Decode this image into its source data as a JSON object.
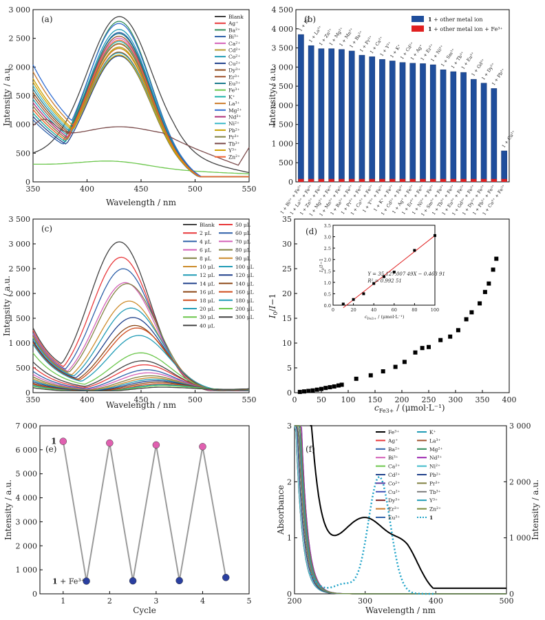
{
  "chart_data": [
    {
      "panel": "(a)",
      "type": "line",
      "xlabel": "Wavelength / nm",
      "ylabel": "Intensity / a.u.",
      "xlim": [
        350,
        550
      ],
      "ylim": [
        0,
        3000
      ],
      "xticks": [
        350,
        400,
        450,
        500,
        550
      ],
      "yticks": [
        0,
        500,
        1000,
        1500,
        2000,
        2500,
        3000
      ],
      "legend": [
        "Blank",
        "Ag⁺",
        "Ba²⁺",
        "Bi³⁺",
        "Ca²⁺",
        "Cd²⁺",
        "Co²⁺",
        "Cu²⁺",
        "Dy³⁺",
        "Er³⁺",
        "Eu³⁺",
        "Fe³⁺",
        "K⁺",
        "La³⁺",
        "Mg²⁺",
        "Nd³⁺",
        "Ni²⁺",
        "Pb²⁺",
        "Pr³⁺",
        "Tb³⁺",
        "Y³⁺",
        "Zn²⁺"
      ],
      "series": [
        {
          "name": "Blank",
          "color": "#404040",
          "peak": 2880,
          "start": 440,
          "shape": "blank"
        },
        {
          "name": "Ag⁺",
          "color": "#e8373a",
          "peak": 2350,
          "start": 1100,
          "shape": "ion"
        },
        {
          "name": "Ba²⁺",
          "color": "#2e8b57",
          "peak": 2750,
          "start": 1000,
          "shape": "ion"
        },
        {
          "name": "Bi³⁺",
          "color": "#2c5fa8",
          "peak": 2560,
          "start": 900,
          "shape": "ion"
        },
        {
          "name": "Ca²⁺",
          "color": "#d35fb7",
          "peak": 2450,
          "start": 1150,
          "shape": "ion"
        },
        {
          "name": "Cd²⁺",
          "color": "#b59a2b",
          "peak": 2300,
          "start": 1050,
          "shape": "ion"
        },
        {
          "name": "Co²⁺",
          "color": "#1f9bb5",
          "peak": 2600,
          "start": 1200,
          "shape": "ion"
        },
        {
          "name": "Cu²⁺",
          "color": "#1e3f8a",
          "peak": 2150,
          "start": 950,
          "shape": "ion"
        },
        {
          "name": "Dy³⁺",
          "color": "#8b4513",
          "peak": 2200,
          "start": 1300,
          "shape": "ion"
        },
        {
          "name": "Er³⁺",
          "color": "#a0522d",
          "peak": 2480,
          "start": 1250,
          "shape": "ion"
        },
        {
          "name": "Eu³⁺",
          "color": "#1a7a8c",
          "peak": 2520,
          "start": 1350,
          "shape": "ion"
        },
        {
          "name": "Fe³⁺",
          "color": "#6ac64a",
          "peak": 420,
          "start": 320,
          "shape": "flat"
        },
        {
          "name": "K⁺",
          "color": "#20b2aa",
          "peak": 2400,
          "start": 1000,
          "shape": "ion"
        },
        {
          "name": "La³⁺",
          "color": "#cc7a29",
          "peak": 2330,
          "start": 1600,
          "shape": "ion"
        },
        {
          "name": "Mg²⁺",
          "color": "#2e6bd1",
          "peak": 2680,
          "start": 1700,
          "shape": "ion"
        },
        {
          "name": "Nd³⁺",
          "color": "#b0307a",
          "peak": 2270,
          "start": 1150,
          "shape": "ion"
        },
        {
          "name": "Ni²⁺",
          "color": "#3cb9c9",
          "peak": 2180,
          "start": 1400,
          "shape": "ion"
        },
        {
          "name": "Pb²⁺",
          "color": "#c8a000",
          "peak": 2140,
          "start": 1500,
          "shape": "ion"
        },
        {
          "name": "Pr³⁺",
          "color": "#808040",
          "peak": 2360,
          "start": 1100,
          "shape": "ion"
        },
        {
          "name": "Tb³⁺",
          "color": "#7a4a4a",
          "peak": 960,
          "start": 1000,
          "shape": "tb"
        },
        {
          "name": "Y³⁺",
          "color": "#d2a000",
          "peak": 2260,
          "start": 1450,
          "shape": "ion"
        },
        {
          "name": "Zn²⁺",
          "color": "#f06030",
          "peak": 2420,
          "start": 1050,
          "shape": "ion"
        }
      ]
    },
    {
      "panel": "(b)",
      "type": "bar",
      "ylabel": "Intensity / a.u.",
      "ylim": [
        0,
        4500
      ],
      "yticks": [
        0,
        500,
        1000,
        1500,
        2000,
        2500,
        3000,
        3500,
        4000,
        4500
      ],
      "legend": [
        {
          "label_bold": "1",
          "label": " + other metal ion",
          "color": "#1f4e9c"
        },
        {
          "label_bold": "1",
          "label": " + other metal ion + Fe³⁺",
          "color": "#e02020"
        }
      ],
      "categories": [
        "1 + Bi³⁺ + Fe³⁺",
        "1 + La³⁺ + Fe³⁺",
        "1 + Zn²⁺ + Fe³⁺",
        "1 + Mg²⁺ + Fe³⁺",
        "1 + Mn²⁺ + Fe³⁺",
        "1 + Ba²⁺ + Fe³⁺",
        "1 + Pr³⁺ + Fe³⁺",
        "1 + Ca²⁺ + Fe³⁺",
        "1 + Y³⁺ + Fe³⁺",
        "1 + K⁺ + Fe³⁺",
        "1 + Cd²⁺ + Fe³⁺",
        "1 + Ag⁺ + Fe³⁺",
        "1 + Er³⁺ + Fe³⁺",
        "1 + Ni²⁺ + Fe³⁺",
        "1 + Sm³⁺ + Fe³⁺",
        "1 + Tb³⁺ + Fe³⁺",
        "1 + Eu³⁺ + Fe³⁺",
        "1 + Gd³⁺ + Fe³⁺",
        "1 + Dy³⁺ + Fe³⁺",
        "1 + Pb²⁺ + Fe³⁺",
        "1 + Cu²⁺ + Fe³⁺"
      ],
      "bar_labels": [
        "1 + Bi³⁺",
        "1 + La³⁺",
        "1 + Zn²⁺",
        "1 + Mg²⁺",
        "1 + Mn²⁺",
        "1 + Ba²⁺",
        "1 + Pr³⁺",
        "1 + Ca²⁺",
        "1 + Y³⁺",
        "1 + K⁺",
        "1 + Cd²⁺",
        "1 + Ag⁺",
        "1 + Er³⁺",
        "1 + Ni²⁺",
        "1 + Sm³⁺",
        "1 + Tb³⁺",
        "1 + Eu³⁺",
        "1 + Gd³⁺",
        "1 + Dy³⁺",
        "1 + Pb²⁺",
        "1 + Cu²⁺"
      ],
      "series": [
        {
          "name": "1 + other metal ion",
          "values": [
            3850,
            3560,
            3480,
            3480,
            3460,
            3420,
            3310,
            3270,
            3200,
            3160,
            3120,
            3100,
            3090,
            3060,
            2930,
            2880,
            2860,
            2680,
            2580,
            2440,
            810
          ]
        },
        {
          "name": "1 + other metal ion + Fe³⁺",
          "values": [
            40,
            40,
            40,
            40,
            40,
            40,
            40,
            40,
            40,
            40,
            40,
            40,
            40,
            40,
            40,
            40,
            40,
            40,
            40,
            40,
            40
          ]
        }
      ]
    },
    {
      "panel": "(c)",
      "type": "line",
      "xlabel": "Wavelength / nm",
      "ylabel": "Intensity / a.u.",
      "xlim": [
        350,
        550
      ],
      "ylim": [
        0,
        3500
      ],
      "xticks": [
        350,
        400,
        450,
        500,
        550
      ],
      "yticks": [
        0,
        500,
        1000,
        1500,
        2000,
        2500,
        3000,
        3500
      ],
      "legend": [
        "Blank",
        "2 μL",
        "4 μL",
        "6 μL",
        "8 μL",
        "10 μL",
        "12 μL",
        "14 μL",
        "16 μL",
        "18 μL",
        "20 μL",
        "30 μL",
        "40 μL",
        "50 μL",
        "60 μL",
        "70 μL",
        "80 μL",
        "90 μL",
        "100 μL",
        "120 μL",
        "140 μL",
        "160 μL",
        "180 μL",
        "200 μL",
        "300 μL"
      ],
      "series": [
        {
          "name": "Blank",
          "color": "#404040",
          "peak": 3030,
          "start": 1300
        },
        {
          "name": "2 μL",
          "color": "#e8373a",
          "peak": 2720,
          "start": 1250
        },
        {
          "name": "4 μL",
          "color": "#2c5fa8",
          "peak": 2490,
          "start": 1200
        },
        {
          "name": "6 μL",
          "color": "#d35fb7",
          "peak": 2210,
          "start": 1180
        },
        {
          "name": "8 μL",
          "color": "#808040",
          "peak": 2190,
          "start": 1150
        },
        {
          "name": "10 μL",
          "color": "#cc8a29",
          "peak": 1840,
          "start": 1120
        },
        {
          "name": "12 μL",
          "color": "#1f9bb5",
          "peak": 1700,
          "start": 1100
        },
        {
          "name": "14 μL",
          "color": "#1e3f8a",
          "peak": 1510,
          "start": 1050
        },
        {
          "name": "16 μL",
          "color": "#8b4513",
          "peak": 1350,
          "start": 1020
        },
        {
          "name": "18 μL",
          "color": "#cf4a1a",
          "peak": 1300,
          "start": 1000
        },
        {
          "name": "20 μL",
          "color": "#1f9bb5",
          "peak": 1150,
          "start": 980
        },
        {
          "name": "30 μL",
          "color": "#6ac64a",
          "peak": 800,
          "start": 800
        },
        {
          "name": "40 μL",
          "color": "#404040",
          "peak": 640,
          "start": 620
        },
        {
          "name": "50 μL",
          "color": "#e8373a",
          "peak": 560,
          "start": 520
        },
        {
          "name": "60 μL",
          "color": "#2c5fa8",
          "peak": 460,
          "start": 430
        },
        {
          "name": "70 μL",
          "color": "#d35fb7",
          "peak": 400,
          "start": 370
        },
        {
          "name": "80 μL",
          "color": "#808040",
          "peak": 340,
          "start": 320
        },
        {
          "name": "90 μL",
          "color": "#cc8a29",
          "peak": 300,
          "start": 280
        },
        {
          "name": "100 μL",
          "color": "#1f9bb5",
          "peak": 270,
          "start": 250
        },
        {
          "name": "120 μL",
          "color": "#1e3f8a",
          "peak": 240,
          "start": 220
        },
        {
          "name": "140 μL",
          "color": "#8b4513",
          "peak": 210,
          "start": 190
        },
        {
          "name": "160 μL",
          "color": "#cf4a1a",
          "peak": 180,
          "start": 170
        },
        {
          "name": "180 μL",
          "color": "#1f9bb5",
          "peak": 160,
          "start": 150
        },
        {
          "name": "200 μL",
          "color": "#6ac64a",
          "peak": 140,
          "start": 130
        },
        {
          "name": "300 μL",
          "color": "#404040",
          "peak": 110,
          "start": 100
        }
      ]
    },
    {
      "panel": "(d)",
      "type": "scatter",
      "xlabel": "c_Fe3+ / (μmol·L⁻¹)",
      "ylabel": "I0/I−1",
      "xlim": [
        0,
        400
      ],
      "ylim": [
        0,
        35
      ],
      "xticks": [
        0,
        50,
        100,
        150,
        200,
        250,
        300,
        350,
        400
      ],
      "yticks": [
        0,
        5,
        10,
        15,
        20,
        25,
        30,
        35
      ],
      "points": [
        [
          10,
          0.15
        ],
        [
          18,
          0.25
        ],
        [
          26,
          0.35
        ],
        [
          34,
          0.45
        ],
        [
          42,
          0.6
        ],
        [
          50,
          0.75
        ],
        [
          58,
          0.95
        ],
        [
          66,
          1.1
        ],
        [
          74,
          1.25
        ],
        [
          82,
          1.45
        ],
        [
          88,
          1.6
        ],
        [
          115,
          2.8
        ],
        [
          142,
          3.5
        ],
        [
          165,
          4.3
        ],
        [
          188,
          5.2
        ],
        [
          205,
          6.2
        ],
        [
          225,
          8.1
        ],
        [
          238,
          9.0
        ],
        [
          250,
          9.2
        ],
        [
          272,
          10.6
        ],
        [
          290,
          11.3
        ],
        [
          305,
          12.6
        ],
        [
          320,
          14.8
        ],
        [
          330,
          16.2
        ],
        [
          345,
          18.0
        ],
        [
          355,
          20.3
        ],
        [
          362,
          22.0
        ],
        [
          370,
          24.8
        ],
        [
          376,
          27.0
        ]
      ],
      "inset": {
        "xlabel": "c_Fe3+ / (μmol·L⁻¹)",
        "ylabel": "I0/I−1",
        "xlim": [
          0,
          100
        ],
        "ylim": [
          0,
          3.5
        ],
        "xticks": [
          0,
          20,
          40,
          60,
          80,
          100
        ],
        "yticks": [
          0,
          0.5,
          1.0,
          1.5,
          2.0,
          2.5,
          3.0,
          3.5
        ],
        "points": [
          [
            10,
            0.05
          ],
          [
            20,
            0.25
          ],
          [
            30,
            0.5
          ],
          [
            40,
            0.95
          ],
          [
            50,
            1.25
          ],
          [
            60,
            1.45
          ],
          [
            80,
            2.4
          ],
          [
            100,
            3.05
          ]
        ],
        "fit": {
          "slope": 0.03512700749,
          "intercept": -0.46391
        },
        "equation": "Y = 35 127.007 49X − 0.463 91",
        "r2": "R² = 0.992 51"
      }
    },
    {
      "panel": "(e)",
      "type": "line",
      "xlabel": "Cycle",
      "ylabel": "Intensity / a.u.",
      "xlim": [
        0.5,
        5
      ],
      "ylim": [
        0,
        7000
      ],
      "xticks": [
        1,
        2,
        3,
        4,
        5
      ],
      "yticks": [
        0,
        1000,
        2000,
        3000,
        4000,
        5000,
        6000,
        7000
      ],
      "annotations": [
        "1",
        "1 + Fe³⁺"
      ],
      "points": [
        [
          1,
          6350
        ],
        [
          1.5,
          530
        ],
        [
          2,
          6280
        ],
        [
          2.5,
          540
        ],
        [
          3,
          6200
        ],
        [
          3.5,
          550
        ],
        [
          4,
          6130
        ],
        [
          4.5,
          680
        ]
      ],
      "colors": {
        "high": "#e060b0",
        "low": "#2a3fa0",
        "line": "#9a9a9a"
      }
    },
    {
      "panel": "(f)",
      "type": "line",
      "xlabel": "Wavelength / nm",
      "ylabel": "Absorbance",
      "ylabel_right": "Intensity / a.u.",
      "xlim": [
        200,
        500
      ],
      "ylim": [
        0,
        3
      ],
      "ylim_right": [
        0,
        3000
      ],
      "xticks": [
        200,
        300,
        400,
        500
      ],
      "yticks": [
        0,
        1,
        2,
        3
      ],
      "yticks_right": [
        0,
        1000,
        2000,
        3000
      ],
      "legend": [
        "Fe³⁺",
        "Ag⁺",
        "Ba²⁺",
        "Bi³⁺",
        "Ca²⁺",
        "Cd²⁺",
        "Co²⁺",
        "Cu²⁺",
        "Dy³⁺",
        "Er³⁺",
        "Eu³⁺",
        "K⁺",
        "La³⁺",
        "Mg²⁺",
        "Nd³⁺",
        "Ni²⁺",
        "Pb²⁺",
        "Pr³⁺",
        "Tb³⁺",
        "Y³⁺",
        "Zn²⁺",
        "1"
      ],
      "colors": [
        "#000000",
        "#e8373a",
        "#2c5fa8",
        "#d35fb7",
        "#6ac64a",
        "#1e3f8a",
        "#5a3fa0",
        "#3f51b5",
        "#7a1f1f",
        "#cc7a29",
        "#2c5fa8",
        "#1f9bb5",
        "#a0522d",
        "#2e8b57",
        "#9c27b0",
        "#3cb9c9",
        "#1e3f8a",
        "#808040",
        "#7a7a7a",
        "#1f9bb5",
        "#7a8a3a",
        "#1fa3c8"
      ],
      "excitation_peak_nm": 320,
      "excitation_peak_intensity": 2090
    }
  ]
}
